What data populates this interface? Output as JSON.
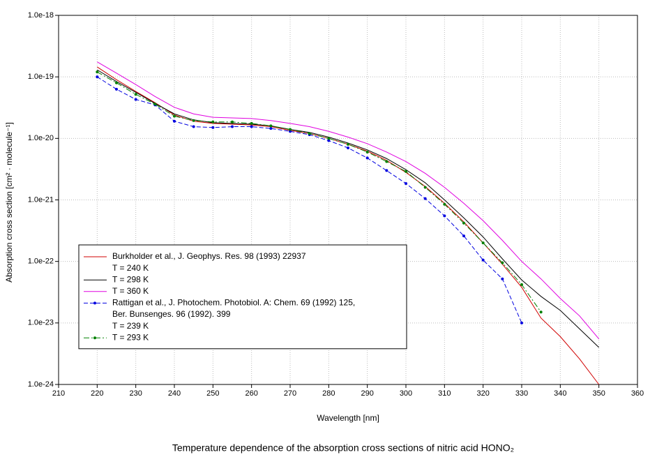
{
  "chart_data": {
    "type": "line",
    "log_y": true,
    "grid": true,
    "caption": "Temperature dependence of the absorption cross sections of nitric acid HONO₂",
    "xlabel": "Wavelength [nm]",
    "ylabel": "Absorption cross section [cm² · molecule⁻¹]",
    "xlim": [
      210,
      360
    ],
    "xticks": [
      210,
      220,
      230,
      240,
      250,
      260,
      270,
      280,
      290,
      300,
      310,
      320,
      330,
      340,
      350,
      360
    ],
    "ylim": [
      1e-24,
      1e-18
    ],
    "yticks": [
      {
        "value": 1e-24,
        "label": "1.0e-24"
      },
      {
        "value": 1e-23,
        "label": "1.0e-23"
      },
      {
        "value": 1e-22,
        "label": "1.0e-22"
      },
      {
        "value": 1e-21,
        "label": "1.0e-21"
      },
      {
        "value": 1e-20,
        "label": "1.0e-20"
      },
      {
        "value": 1e-19,
        "label": "1.0e-19"
      },
      {
        "value": 1e-18,
        "label": "1.0e-18"
      }
    ],
    "series": [
      {
        "name": "T = 240 K",
        "source": [
          "Burkholder et al., J. Geophys. Res. 98 (1993) 22937"
        ],
        "color": "#d00000",
        "x": [
          220,
          225,
          230,
          235,
          240,
          245,
          250,
          255,
          260,
          265,
          270,
          275,
          280,
          285,
          290,
          295,
          300,
          305,
          310,
          315,
          320,
          325,
          330,
          335,
          340,
          345,
          350
        ],
        "values": [
          1.45e-19,
          9e-20,
          5.8e-20,
          3.8e-20,
          2.4e-20,
          1.9e-20,
          1.75e-20,
          1.7e-20,
          1.65e-20,
          1.55e-20,
          1.35e-20,
          1.2e-20,
          1e-20,
          8e-21,
          6.2e-21,
          4.4e-21,
          2.8e-21,
          1.65e-21,
          8.8e-22,
          4.4e-22,
          2e-22,
          9e-23,
          3.8e-23,
          1.2e-23,
          6e-24,
          2.6e-24,
          1e-24
        ]
      },
      {
        "name": "T = 298 K",
        "color": "#000000",
        "x": [
          220,
          225,
          230,
          235,
          240,
          245,
          250,
          255,
          260,
          265,
          270,
          275,
          280,
          285,
          290,
          295,
          300,
          305,
          310,
          315,
          320,
          325,
          330,
          335,
          340,
          345,
          350
        ],
        "values": [
          1.3e-19,
          8.4e-20,
          5.6e-20,
          3.7e-20,
          2.5e-20,
          2e-20,
          1.8e-20,
          1.75e-20,
          1.7e-20,
          1.6e-20,
          1.4e-20,
          1.25e-20,
          1.05e-20,
          8.4e-21,
          6.5e-21,
          4.7e-21,
          3.1e-21,
          1.9e-21,
          1e-21,
          5.1e-22,
          2.5e-22,
          1.1e-22,
          5e-23,
          2.7e-23,
          1.6e-23,
          8e-24,
          4e-24
        ]
      },
      {
        "name": "T = 360 K",
        "color": "#e000e0",
        "x": [
          220,
          225,
          230,
          235,
          240,
          245,
          250,
          255,
          260,
          265,
          270,
          275,
          280,
          285,
          290,
          295,
          300,
          305,
          310,
          315,
          320,
          325,
          330,
          335,
          340,
          345,
          350
        ],
        "values": [
          1.75e-19,
          1.15e-19,
          7.5e-20,
          4.8e-20,
          3.2e-20,
          2.5e-20,
          2.2e-20,
          2.15e-20,
          2.1e-20,
          1.95e-20,
          1.75e-20,
          1.55e-20,
          1.3e-20,
          1.05e-20,
          8.2e-21,
          6e-21,
          4.2e-21,
          2.7e-21,
          1.6e-21,
          8.8e-22,
          4.6e-22,
          2.2e-22,
          1e-22,
          5.2e-23,
          2.5e-23,
          1.3e-23,
          5.5e-24
        ]
      },
      {
        "name": "T = 239 K",
        "source": [
          "Rattigan et al., J. Photochem. Photobiol. A: Chem. 69 (1992) 125,",
          "Ber. Bunsenges. 96 (1992). 399"
        ],
        "color": "#0000e0",
        "dash": "6 3",
        "marker": "circle",
        "x": [
          220,
          225,
          230,
          235,
          240,
          245,
          250,
          255,
          260,
          265,
          270,
          275,
          280,
          285,
          290,
          295,
          300,
          305,
          310,
          315,
          320,
          325,
          330
        ],
        "values": [
          1e-19,
          6.3e-20,
          4.3e-20,
          3.5e-20,
          1.9e-20,
          1.55e-20,
          1.5e-20,
          1.55e-20,
          1.55e-20,
          1.45e-20,
          1.3e-20,
          1.15e-20,
          9.2e-21,
          7e-21,
          4.8e-21,
          3e-21,
          1.85e-21,
          1.05e-21,
          5.5e-22,
          2.6e-22,
          1.05e-22,
          5.2e-23,
          1e-23
        ]
      },
      {
        "name": "T = 293 K",
        "color": "#008000",
        "dash": "8 3 2 3",
        "marker": "circle",
        "x": [
          220,
          225,
          230,
          235,
          240,
          245,
          250,
          255,
          260,
          265,
          270,
          275,
          280,
          285,
          290,
          295,
          300,
          305,
          310,
          315,
          320,
          325,
          330,
          335
        ],
        "values": [
          1.2e-19,
          8e-20,
          5.2e-20,
          3.6e-20,
          2.3e-20,
          1.95e-20,
          1.85e-20,
          1.85e-20,
          1.75e-20,
          1.6e-20,
          1.4e-20,
          1.2e-20,
          1e-20,
          8e-21,
          6e-21,
          4.2e-21,
          2.9e-21,
          1.6e-21,
          8.5e-22,
          4.2e-22,
          2e-22,
          9.5e-23,
          4.2e-23,
          1.5e-23
        ]
      }
    ]
  }
}
